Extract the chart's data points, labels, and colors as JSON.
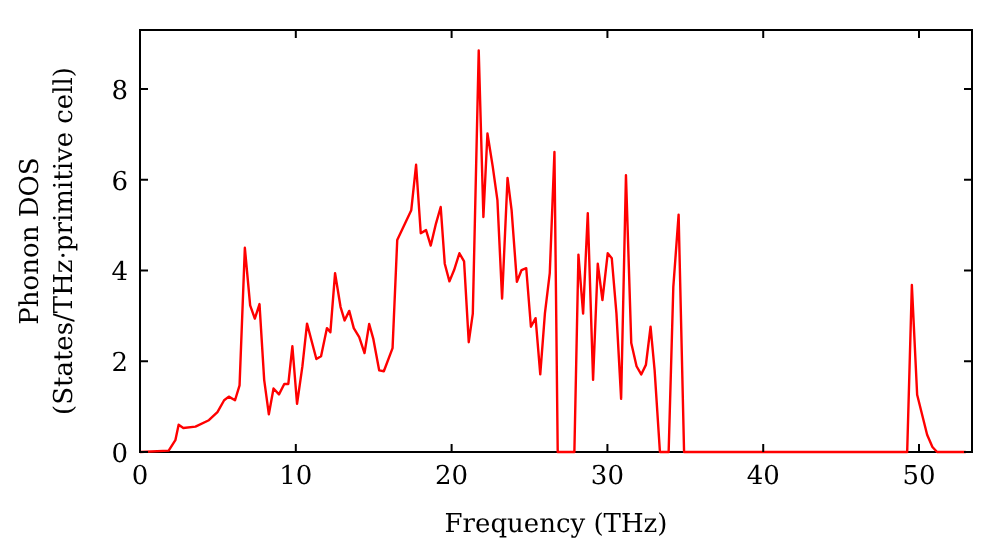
{
  "chart_data": {
    "type": "line",
    "xlabel": "Frequency (THz)",
    "ylabel": "Phonon DOS\n(States/THz·primitive cell)",
    "xlim": [
      0,
      53.4
    ],
    "ylim": [
      0,
      9.3
    ],
    "xticks": [
      0,
      10,
      20,
      30,
      40,
      50
    ],
    "yticks": [
      0,
      2,
      4,
      6,
      8
    ],
    "grid": false,
    "marker": "none",
    "line_style": "solid",
    "series": [
      {
        "color": "#ff0000",
        "x": [
          0,
          1.84,
          2.27,
          2.48,
          2.78,
          3.56,
          4.42,
          4.97,
          5.4,
          5.7,
          6.1,
          6.39,
          6.73,
          7.07,
          7.37,
          7.67,
          7.97,
          8.27,
          8.57,
          8.92,
          9.26,
          9.52,
          9.78,
          10.08,
          10.42,
          10.72,
          11.32,
          11.62,
          12.0,
          12.22,
          12.52,
          12.87,
          13.13,
          13.43,
          13.72,
          14.07,
          14.41,
          14.71,
          14.97,
          15.35,
          15.65,
          16.21,
          16.51,
          17.41,
          17.72,
          18.02,
          18.36,
          18.66,
          19.0,
          19.3,
          19.56,
          19.86,
          20.16,
          20.5,
          20.8,
          21.1,
          21.36,
          21.74,
          22.04,
          22.3,
          22.64,
          22.94,
          23.24,
          23.59,
          23.85,
          24.19,
          24.49,
          24.79,
          25.09,
          25.39,
          25.69,
          25.99,
          26.3,
          26.6,
          26.81,
          27.88,
          28.14,
          28.44,
          28.74,
          29.08,
          29.38,
          29.68,
          30.02,
          30.28,
          30.58,
          30.88,
          31.19,
          31.53,
          31.87,
          32.17,
          32.47,
          32.77,
          33.03,
          33.37,
          33.93,
          34.23,
          34.57,
          34.92,
          49.24,
          49.54,
          49.88,
          50.18,
          50.52,
          50.86,
          51.16,
          53
        ],
        "values": [
          0,
          0.03,
          0.26,
          0.6,
          0.53,
          0.56,
          0.7,
          0.88,
          1.14,
          1.22,
          1.14,
          1.47,
          4.5,
          3.23,
          2.94,
          3.26,
          1.59,
          0.83,
          1.4,
          1.27,
          1.5,
          1.5,
          2.33,
          1.06,
          1.88,
          2.83,
          2.05,
          2.11,
          2.73,
          2.64,
          3.94,
          3.2,
          2.9,
          3.11,
          2.73,
          2.53,
          2.18,
          2.82,
          2.5,
          1.8,
          1.78,
          2.29,
          4.67,
          5.33,
          6.33,
          4.82,
          4.89,
          4.55,
          5.04,
          5.4,
          4.15,
          3.76,
          4.01,
          4.38,
          4.2,
          2.42,
          3.05,
          8.85,
          5.18,
          7.02,
          6.29,
          5.55,
          3.38,
          6.04,
          5.33,
          3.75,
          4.01,
          4.05,
          2.76,
          2.95,
          1.71,
          3.06,
          3.94,
          6.61,
          0,
          0,
          4.35,
          3.05,
          5.26,
          1.59,
          4.15,
          3.35,
          4.38,
          4.27,
          3.05,
          1.17,
          6.1,
          2.4,
          1.89,
          1.71,
          1.92,
          2.76,
          1.8,
          0,
          0,
          3.64,
          5.23,
          0,
          0,
          3.68,
          1.26,
          0.85,
          0.38,
          0.11,
          0,
          0
        ]
      }
    ]
  }
}
